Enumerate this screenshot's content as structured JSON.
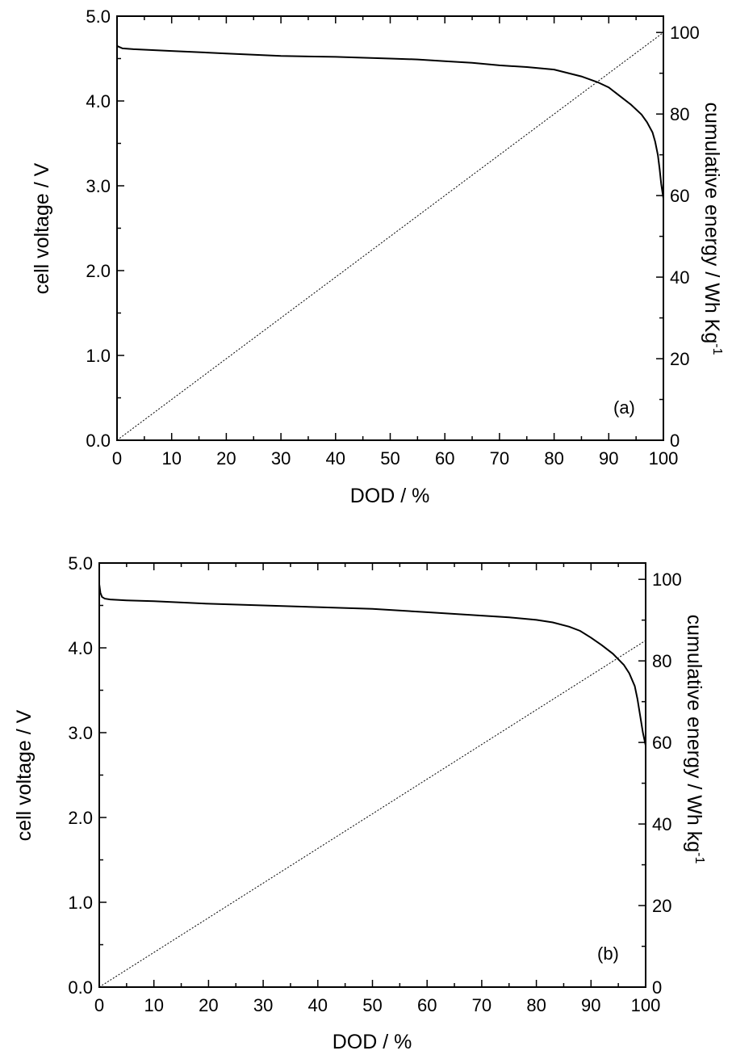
{
  "chart_data": [
    {
      "type": "line",
      "panel_label": "(a)",
      "xlabel": "DOD / %",
      "ylabel": "cell voltage / V",
      "ylabel_right": "cumulative energy / Wh Kg",
      "ylabel_right_superscript": "-1",
      "xlim": [
        0,
        100
      ],
      "ylim": [
        0,
        5
      ],
      "ylim_right": [
        0,
        104
      ],
      "x_ticks": [
        "0",
        "10",
        "20",
        "30",
        "40",
        "50",
        "60",
        "70",
        "80",
        "90",
        "100"
      ],
      "y_ticks": [
        "0.0",
        "1.0",
        "2.0",
        "3.0",
        "4.0",
        "5.0"
      ],
      "y_ticks_right": [
        "0",
        "20",
        "40",
        "60",
        "80",
        "100"
      ],
      "grid": false,
      "series": [
        {
          "axis": "left",
          "style": "solid",
          "color": "#000000",
          "x": [
            0,
            0.3,
            1,
            3,
            10,
            20,
            30,
            40,
            50,
            55,
            60,
            65,
            70,
            75,
            80,
            85,
            88,
            90,
            92,
            94,
            96,
            97,
            98,
            98.5,
            99,
            99.3,
            99.6,
            100
          ],
          "y": [
            4.65,
            4.64,
            4.62,
            4.61,
            4.59,
            4.56,
            4.53,
            4.52,
            4.5,
            4.49,
            4.47,
            4.45,
            4.42,
            4.4,
            4.37,
            4.29,
            4.22,
            4.16,
            4.06,
            3.96,
            3.84,
            3.75,
            3.63,
            3.52,
            3.36,
            3.2,
            3.02,
            2.85
          ]
        },
        {
          "axis": "right",
          "style": "dotted",
          "color": "#000000",
          "x": [
            0,
            100
          ],
          "y": [
            0,
            100
          ]
        }
      ]
    },
    {
      "type": "line",
      "panel_label": "(b)",
      "xlabel": "DOD / %",
      "ylabel": "cell voltage / V",
      "ylabel_right": "cumulative energy / Wh kg",
      "ylabel_right_superscript": "-1",
      "xlim": [
        0,
        100
      ],
      "ylim": [
        0,
        5
      ],
      "ylim_right": [
        0,
        104
      ],
      "x_ticks": [
        "0",
        "10",
        "20",
        "30",
        "40",
        "50",
        "60",
        "70",
        "80",
        "90",
        "100"
      ],
      "y_ticks": [
        "0.0",
        "1.0",
        "2.0",
        "3.0",
        "4.0",
        "5.0"
      ],
      "y_ticks_right": [
        "0",
        "20",
        "40",
        "60",
        "80",
        "100"
      ],
      "grid": false,
      "series": [
        {
          "axis": "left",
          "style": "solid",
          "color": "#000000",
          "x": [
            0,
            0.2,
            0.5,
            1,
            2,
            5,
            10,
            20,
            30,
            40,
            50,
            60,
            65,
            70,
            75,
            80,
            83,
            86,
            88,
            90,
            92,
            94,
            96,
            97,
            98,
            98.5,
            99,
            99.5,
            100
          ],
          "y": [
            4.75,
            4.65,
            4.6,
            4.58,
            4.57,
            4.56,
            4.55,
            4.52,
            4.5,
            4.48,
            4.46,
            4.42,
            4.4,
            4.38,
            4.36,
            4.33,
            4.3,
            4.25,
            4.2,
            4.12,
            4.03,
            3.93,
            3.8,
            3.7,
            3.55,
            3.4,
            3.2,
            3.0,
            2.85
          ]
        },
        {
          "axis": "right",
          "style": "dotted",
          "color": "#000000",
          "x": [
            0,
            100
          ],
          "y": [
            0,
            85
          ]
        }
      ]
    }
  ]
}
